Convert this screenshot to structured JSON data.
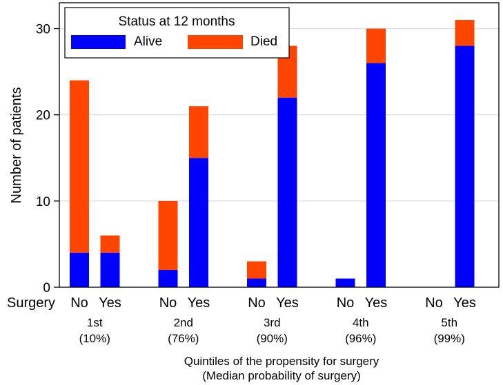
{
  "chart_data": {
    "type": "bar",
    "stacked": true,
    "y_label": "Number of patients",
    "x_title_line1": "Quintiles of the propensity for surgery",
    "x_title_line2": "(Median probability of surgery)",
    "row_label": "Surgery",
    "ylim": [
      0,
      33
    ],
    "yticks": [
      0,
      10,
      20,
      30
    ],
    "grid": true,
    "legend": {
      "title": "Status at 12 months",
      "placement": "top-left",
      "entries": [
        {
          "name": "Alive",
          "color": "#0000ff"
        },
        {
          "name": "Died",
          "color": "#ff4500"
        }
      ]
    },
    "groups": [
      {
        "quintile": "1st",
        "median": "(10%)",
        "bars": [
          {
            "surgery": "No",
            "alive": 4,
            "died": 20
          },
          {
            "surgery": "Yes",
            "alive": 4,
            "died": 2
          }
        ]
      },
      {
        "quintile": "2nd",
        "median": "(76%)",
        "bars": [
          {
            "surgery": "No",
            "alive": 2,
            "died": 8
          },
          {
            "surgery": "Yes",
            "alive": 15,
            "died": 6
          }
        ]
      },
      {
        "quintile": "3rd",
        "median": "(90%)",
        "bars": [
          {
            "surgery": "No",
            "alive": 1,
            "died": 2
          },
          {
            "surgery": "Yes",
            "alive": 22,
            "died": 6
          }
        ]
      },
      {
        "quintile": "4th",
        "median": "(96%)",
        "bars": [
          {
            "surgery": "No",
            "alive": 1,
            "died": 0
          },
          {
            "surgery": "Yes",
            "alive": 26,
            "died": 4
          }
        ]
      },
      {
        "quintile": "5th",
        "median": "(99%)",
        "bars": [
          {
            "surgery": "No",
            "alive": 0,
            "died": 0
          },
          {
            "surgery": "Yes",
            "alive": 28,
            "died": 3
          }
        ]
      }
    ]
  }
}
